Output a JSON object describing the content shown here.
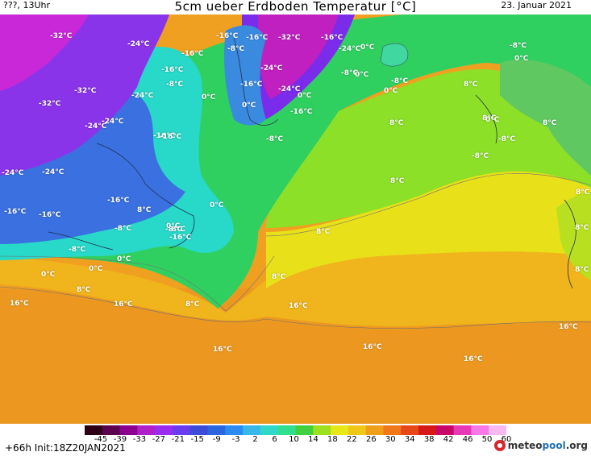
{
  "header": {
    "left_text": "???, 13Uhr",
    "title": "5cm ueber Erdboden Temperatur [°C]",
    "date": "23. Januar 2021"
  },
  "footer": {
    "forecast": "+66h Init:18Z20JAN2021",
    "logo": {
      "brand_a": "meteo",
      "brand_b": "pool",
      "suffix": ".org"
    }
  },
  "colorbar": {
    "ticks": [
      "-45",
      "-39",
      "-33",
      "-27",
      "-21",
      "-15",
      "-9",
      "-3",
      "2",
      "6",
      "10",
      "14",
      "18",
      "22",
      "26",
      "30",
      "34",
      "38",
      "42",
      "46",
      "50",
      "60"
    ],
    "colors": [
      "#2d0016",
      "#5c0050",
      "#8c0090",
      "#b020c8",
      "#9a2cf0",
      "#6a3cf0",
      "#3c4cd8",
      "#2a66e0",
      "#2a8cf0",
      "#38b8e8",
      "#30d8c8",
      "#30e090",
      "#40d040",
      "#9ce020",
      "#e8e818",
      "#f0c818",
      "#f0a018",
      "#f07818",
      "#e84818",
      "#d81818",
      "#c80868",
      "#e838b8",
      "#f878e8",
      "#f8b8f0"
    ]
  },
  "map": {
    "labels": [
      {
        "t": "-32°C"
      },
      {
        "t": "-24°C"
      },
      {
        "t": "-16°C"
      },
      {
        "t": "-16°C"
      },
      {
        "t": "-8°C"
      },
      {
        "t": "-16°C"
      },
      {
        "t": "-32°C"
      },
      {
        "t": "-16°C"
      },
      {
        "t": "-24°C"
      },
      {
        "t": "0°C"
      },
      {
        "t": "-8°C"
      },
      {
        "t": "0°C"
      },
      {
        "t": "-16°C"
      },
      {
        "t": "-24°C"
      },
      {
        "t": "-8°C"
      },
      {
        "t": "0°C"
      },
      {
        "t": "-8°C"
      },
      {
        "t": "-32°C"
      },
      {
        "t": "-24°C"
      },
      {
        "t": "-8°C"
      },
      {
        "t": "0°C"
      },
      {
        "t": "-24°C"
      },
      {
        "t": "-16°C"
      },
      {
        "t": "0°C"
      },
      {
        "t": "-32°C"
      },
      {
        "t": "0°C"
      },
      {
        "t": "-24°C"
      },
      {
        "t": "-16°C"
      },
      {
        "t": "-16°C"
      },
      {
        "t": "0°C"
      },
      {
        "t": "8°C"
      },
      {
        "t": "-24°C"
      },
      {
        "t": "-8°C"
      },
      {
        "t": "-16°C"
      },
      {
        "t": "8°C"
      },
      {
        "t": "8°C"
      },
      {
        "t": "8°C"
      },
      {
        "t": "0°C"
      },
      {
        "t": "-8°C"
      },
      {
        "t": "-24°C"
      },
      {
        "t": "-8°C"
      },
      {
        "t": "-24°C"
      },
      {
        "t": "-16°C"
      },
      {
        "t": "-16°C"
      },
      {
        "t": "8°C"
      },
      {
        "t": "0°C"
      },
      {
        "t": "8°C"
      },
      {
        "t": "-8°C"
      },
      {
        "t": "-16°C"
      },
      {
        "t": "-8°C"
      },
      {
        "t": "8°C"
      },
      {
        "t": "-8°C"
      },
      {
        "t": "-8°C"
      },
      {
        "t": "0°C"
      },
      {
        "t": "8°C"
      },
      {
        "t": "0°C"
      },
      {
        "t": "0°C"
      },
      {
        "t": "0°C"
      },
      {
        "t": "8°C"
      },
      {
        "t": "8°C"
      },
      {
        "t": "16°C"
      },
      {
        "t": "16°C"
      },
      {
        "t": "8°C"
      },
      {
        "t": "16°C"
      },
      {
        "t": "16°C"
      },
      {
        "t": "16°C"
      },
      {
        "t": "16°C"
      },
      {
        "t": "16°C"
      },
      {
        "t": "8°C"
      },
      {
        "t": "8°C"
      },
      {
        "t": "-16°C"
      }
    ]
  }
}
